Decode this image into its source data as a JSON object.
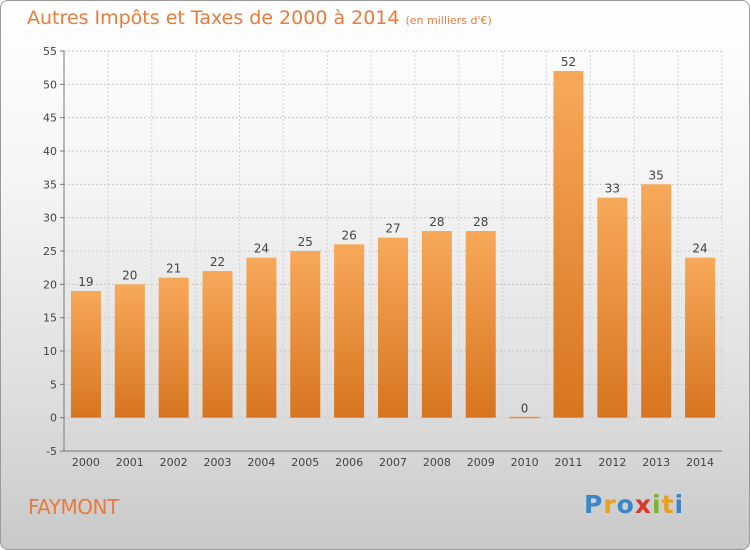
{
  "chart_data": {
    "type": "bar",
    "title": "Autres Impôts et Taxes de 2000 à 2014",
    "subtitle": "(en milliers d'€)",
    "categories": [
      "2000",
      "2001",
      "2002",
      "2003",
      "2004",
      "2005",
      "2006",
      "2007",
      "2008",
      "2009",
      "2010",
      "2011",
      "2012",
      "2013",
      "2014"
    ],
    "values": [
      19,
      20,
      21,
      22,
      24,
      25,
      26,
      27,
      28,
      28,
      0,
      52,
      33,
      35,
      24
    ],
    "ylim": [
      -5,
      55
    ],
    "yticks": [
      -5,
      0,
      5,
      10,
      15,
      20,
      25,
      30,
      35,
      40,
      45,
      50,
      55
    ],
    "grid": true,
    "bar_color": "#f0923e"
  },
  "commune": "FAYMONT",
  "brand": {
    "letters": [
      "P",
      "r",
      "o",
      "x",
      "i",
      "t",
      "i"
    ]
  }
}
